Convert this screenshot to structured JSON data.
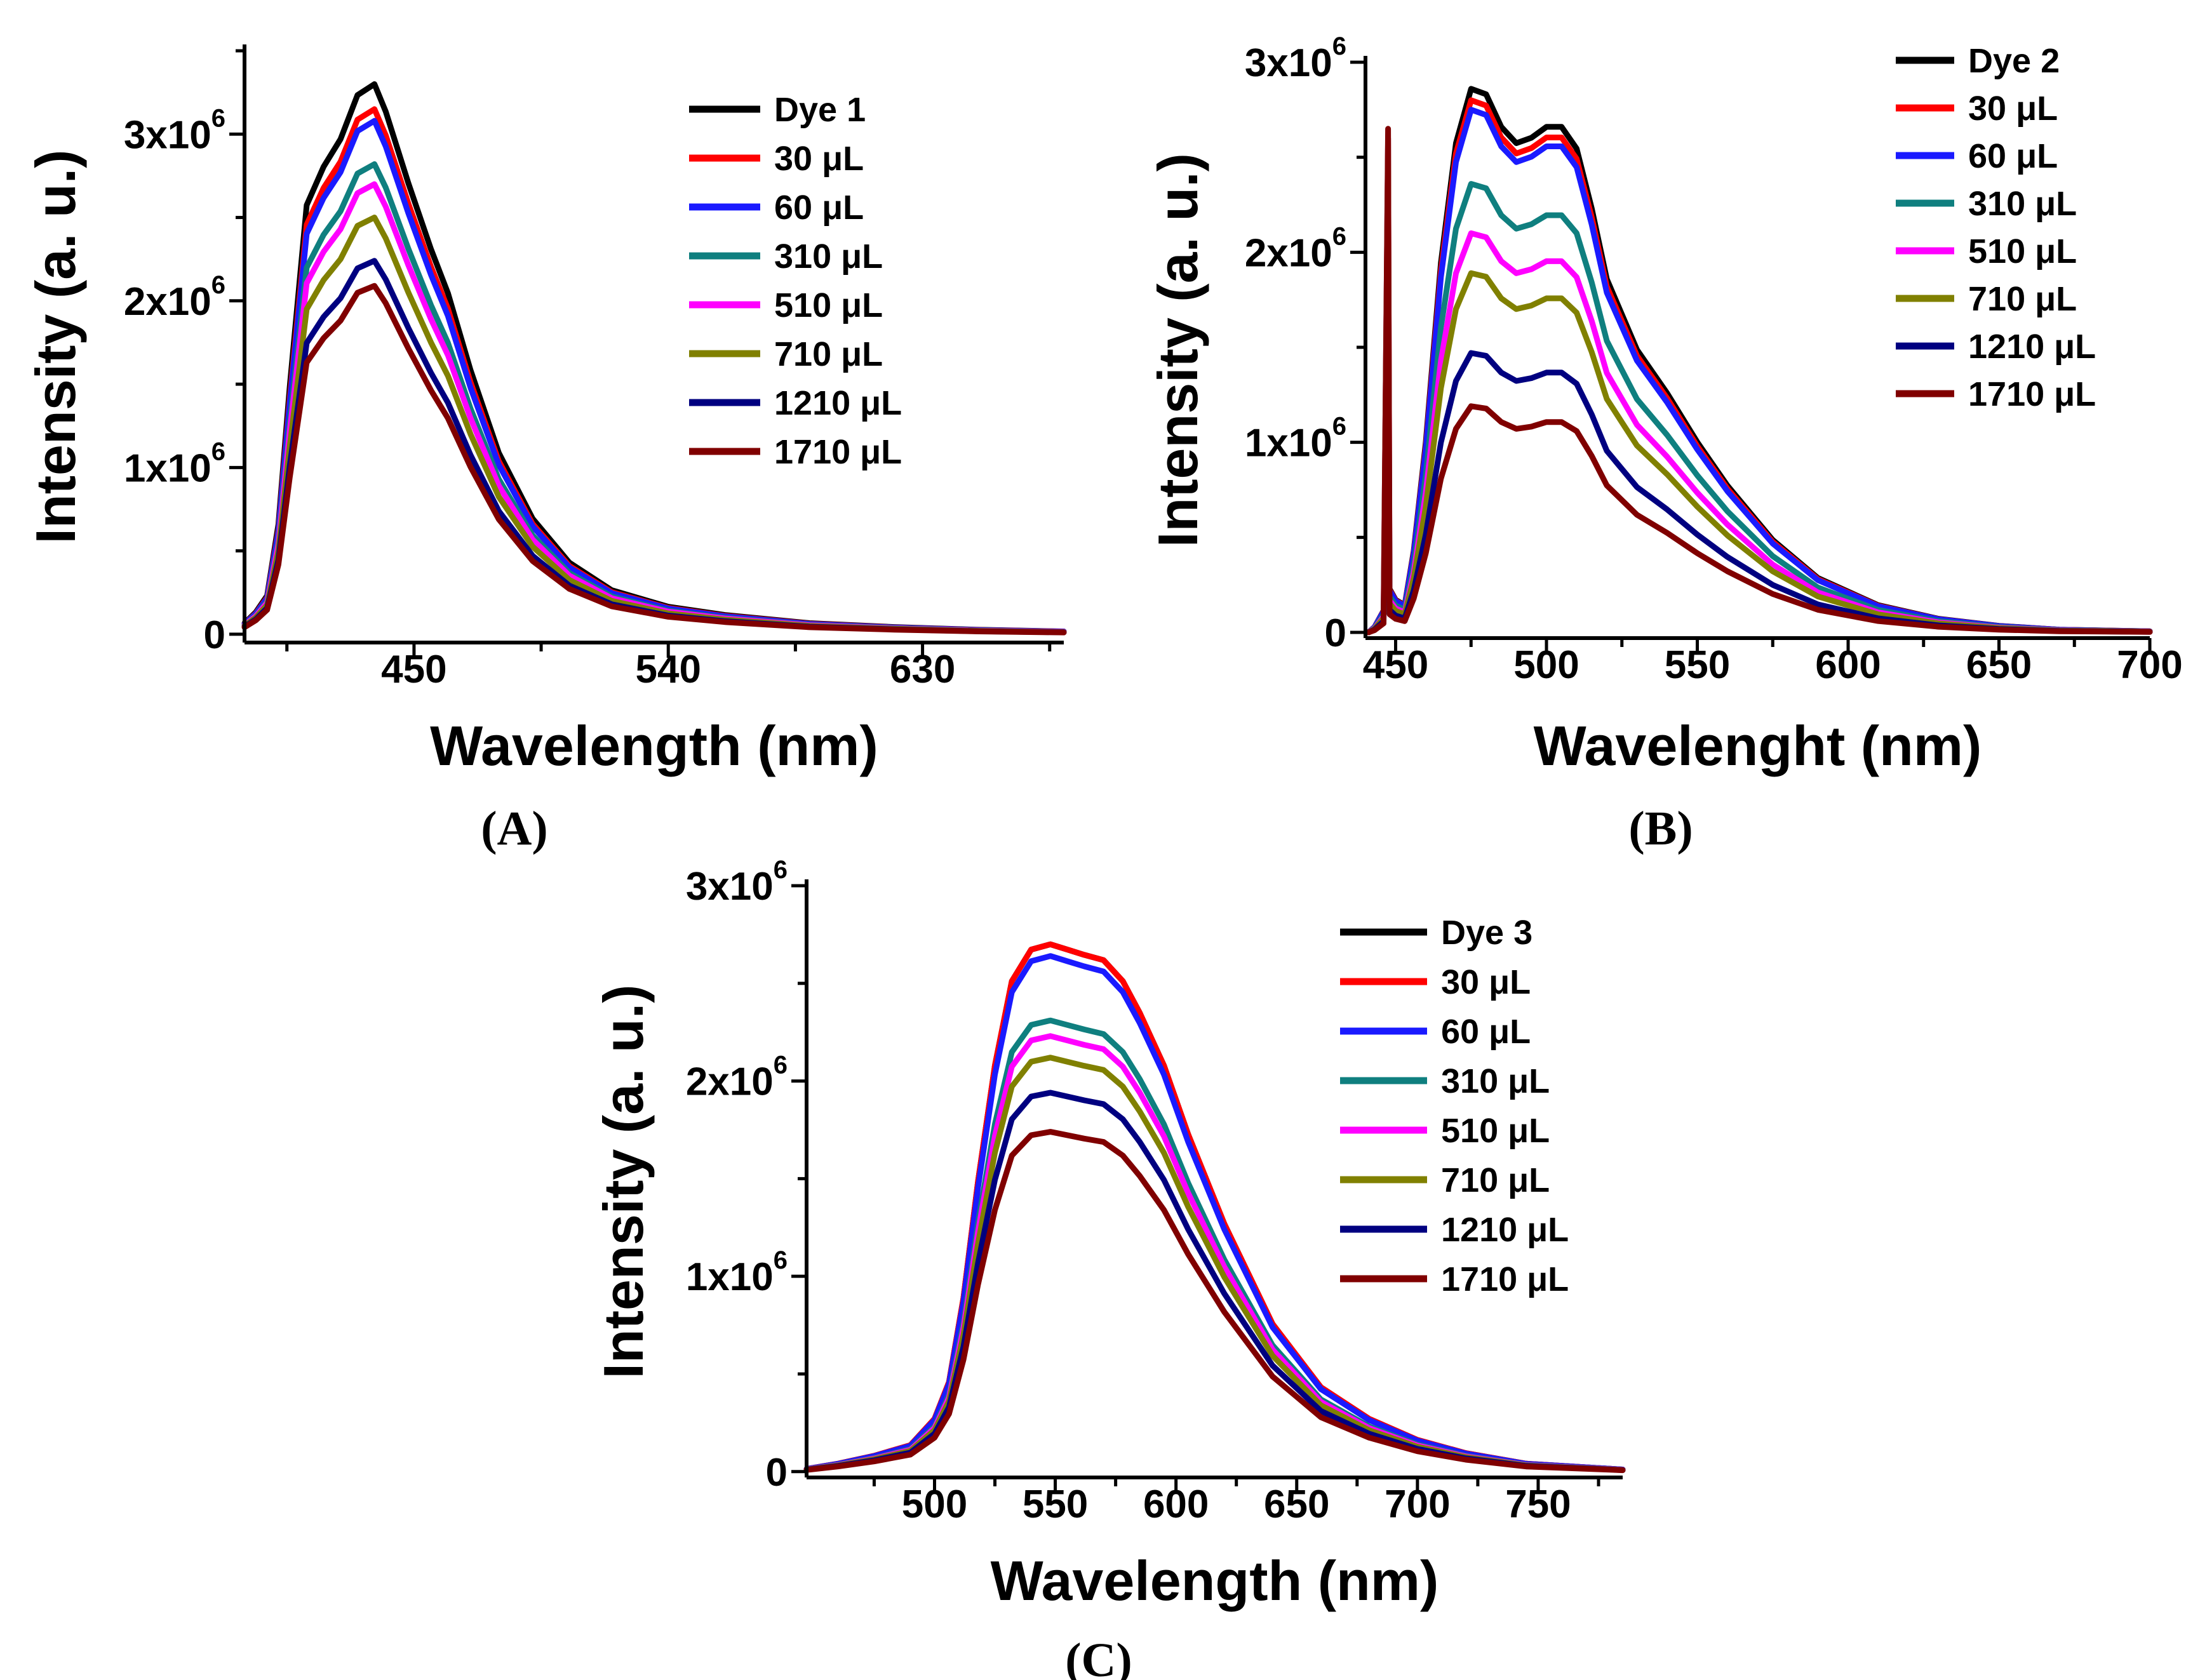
{
  "colors": {
    "axis": "#000000",
    "series": [
      "#000000",
      "#ff0000",
      "#1a1aff",
      "#0f7f7f",
      "#ff00ff",
      "#808000",
      "#000080",
      "#800000"
    ]
  },
  "chart_data": [
    {
      "id": "A",
      "type": "line",
      "panel_label": "(A)",
      "xlabel": "Wavelength (nm)",
      "ylabel": "Intensity (a. u.)",
      "xlim": [
        390,
        680
      ],
      "ylim": [
        -50000,
        3500000
      ],
      "xticks": [
        {
          "v": 450,
          "label": "450"
        },
        {
          "v": 540,
          "label": "540"
        },
        {
          "v": 630,
          "label": "630"
        }
      ],
      "yticks": [
        {
          "v": 0,
          "mant": "0",
          "exp": ""
        },
        {
          "v": 1000000,
          "mant": "1x10",
          "exp": "6"
        },
        {
          "v": 2000000,
          "mant": "2x10",
          "exp": "6"
        },
        {
          "v": 3000000,
          "mant": "3x10",
          "exp": "6"
        }
      ],
      "legend_position": "top-right",
      "x": [
        390,
        394,
        398,
        402,
        406,
        412,
        418,
        424,
        430,
        436,
        440,
        448,
        456,
        462,
        470,
        480,
        492,
        505,
        520,
        540,
        560,
        590,
        620,
        650,
        680
      ],
      "shape": [
        0.02,
        0.04,
        0.07,
        0.2,
        0.45,
        0.78,
        0.85,
        0.9,
        0.98,
        1.0,
        0.95,
        0.82,
        0.7,
        0.62,
        0.48,
        0.33,
        0.21,
        0.13,
        0.08,
        0.05,
        0.035,
        0.02,
        0.013,
        0.008,
        0.005
      ],
      "series": [
        {
          "name": "Dye 1",
          "peak": 3300000
        },
        {
          "name": "30 μL",
          "peak": 3150000
        },
        {
          "name": "60 μL",
          "peak": 3080000
        },
        {
          "name": "310 μL",
          "peak": 2820000
        },
        {
          "name": "510 μL",
          "peak": 2700000
        },
        {
          "name": "710 μL",
          "peak": 2500000
        },
        {
          "name": "1210 μL",
          "peak": 2240000
        },
        {
          "name": "1710 μL",
          "peak": 2090000
        }
      ]
    },
    {
      "id": "B",
      "type": "line",
      "panel_label": "(B)",
      "xlabel": "Wavelenght (nm)",
      "ylabel": "Intensity (a. u.)",
      "xlim": [
        440,
        700
      ],
      "ylim": [
        -30000,
        3000000
      ],
      "xticks": [
        {
          "v": 450,
          "label": "450"
        },
        {
          "v": 500,
          "label": "500"
        },
        {
          "v": 550,
          "label": "550"
        },
        {
          "v": 600,
          "label": "600"
        },
        {
          "v": 650,
          "label": "650"
        },
        {
          "v": 700,
          "label": "700"
        }
      ],
      "yticks": [
        {
          "v": 0,
          "mant": "0",
          "exp": ""
        },
        {
          "v": 1000000,
          "mant": "1x10",
          "exp": "6"
        },
        {
          "v": 2000000,
          "mant": "2x10",
          "exp": "6"
        },
        {
          "v": 3000000,
          "mant": "3x10",
          "exp": "6"
        }
      ],
      "legend_position": "top-right",
      "x": [
        441,
        443,
        446,
        448,
        450,
        453,
        456,
        460,
        465,
        470,
        475,
        480,
        485,
        490,
        495,
        500,
        505,
        510,
        515,
        520,
        530,
        540,
        550,
        560,
        575,
        590,
        610,
        630,
        650,
        670,
        700
      ],
      "shape": [
        0.0,
        0.01,
        0.04,
        0.08,
        0.06,
        0.05,
        0.15,
        0.35,
        0.68,
        0.9,
        1.0,
        0.99,
        0.93,
        0.9,
        0.91,
        0.93,
        0.93,
        0.89,
        0.78,
        0.65,
        0.52,
        0.44,
        0.35,
        0.27,
        0.17,
        0.1,
        0.05,
        0.025,
        0.012,
        0.005,
        0.002
      ],
      "spike": {
        "x": 447.5,
        "values": [
          180000,
          140000,
          340000,
          160000,
          2600000,
          2600000,
          2200000,
          2650000
        ]
      },
      "series": [
        {
          "name": "Dye 2",
          "peak": 2860000
        },
        {
          "name": "30 μL",
          "peak": 2800000
        },
        {
          "name": "60 μL",
          "peak": 2750000
        },
        {
          "name": "310 μL",
          "peak": 2360000
        },
        {
          "name": "510 μL",
          "peak": 2100000
        },
        {
          "name": "710 μL",
          "peak": 1890000
        },
        {
          "name": "1210 μL",
          "peak": 1470000
        },
        {
          "name": "1710 μL",
          "peak": 1190000
        }
      ]
    },
    {
      "id": "C",
      "type": "line",
      "panel_label": "(C)",
      "xlabel": "Wavelength (nm)",
      "ylabel": "Intensity (a. u.)",
      "xlim": [
        447,
        785
      ],
      "ylim": [
        -30000,
        3000000
      ],
      "xticks": [
        {
          "v": 500,
          "label": "500"
        },
        {
          "v": 550,
          "label": "550"
        },
        {
          "v": 600,
          "label": "600"
        },
        {
          "v": 650,
          "label": "650"
        },
        {
          "v": 700,
          "label": "700"
        },
        {
          "v": 750,
          "label": "750"
        }
      ],
      "yticks": [
        {
          "v": 0,
          "mant": "0",
          "exp": ""
        },
        {
          "v": 1000000,
          "mant": "1x10",
          "exp": "6"
        },
        {
          "v": 2000000,
          "mant": "2x10",
          "exp": "6"
        },
        {
          "v": 3000000,
          "mant": "3x10",
          "exp": "6"
        }
      ],
      "legend_position": "top-right",
      "x": [
        447,
        460,
        475,
        490,
        500,
        506,
        512,
        518,
        525,
        532,
        540,
        548,
        555,
        562,
        570,
        578,
        585,
        595,
        605,
        620,
        640,
        660,
        680,
        700,
        720,
        745,
        785
      ],
      "shape": [
        0.005,
        0.015,
        0.03,
        0.05,
        0.1,
        0.17,
        0.33,
        0.55,
        0.77,
        0.93,
        0.99,
        1.0,
        0.99,
        0.98,
        0.97,
        0.93,
        0.87,
        0.77,
        0.64,
        0.47,
        0.28,
        0.16,
        0.1,
        0.06,
        0.035,
        0.015,
        0.004
      ],
      "series": [
        {
          "name": "Dye 3",
          "peak": 2700000
        },
        {
          "name": "30 μL",
          "peak": 2700000
        },
        {
          "name": "60 μL",
          "peak": 2640000
        },
        {
          "name": "310 μL",
          "peak": 2310000
        },
        {
          "name": "510 μL",
          "peak": 2230000
        },
        {
          "name": "710 μL",
          "peak": 2120000
        },
        {
          "name": "1210 μL",
          "peak": 1940000
        },
        {
          "name": "1710 μL",
          "peak": 1740000
        }
      ]
    }
  ]
}
